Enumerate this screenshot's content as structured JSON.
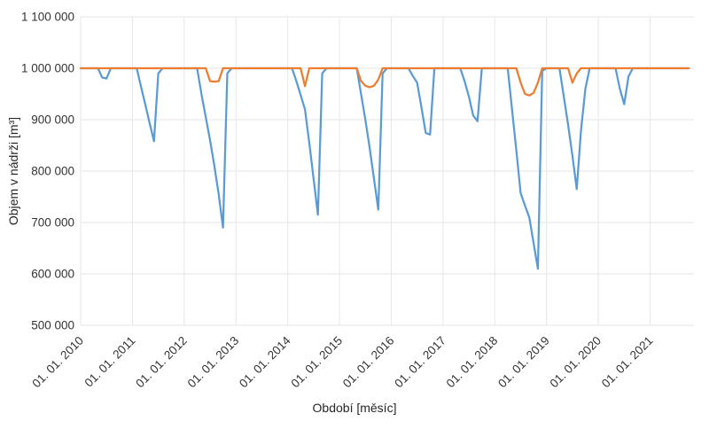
{
  "chart_data": {
    "type": "line",
    "title": "",
    "grid": true,
    "legend": "none",
    "background": "#ffffff",
    "gridline_color": "#e6e6e6",
    "tick_text_color": "#333333",
    "y_axis": {
      "title": "Objem v nádrži [m³]",
      "range": [
        500000,
        1100000
      ],
      "ticks": [
        {
          "label": "1 100 000",
          "value": 1100000
        },
        {
          "label": "1 000 000",
          "value": 1000000
        },
        {
          "label": "900 000",
          "value": 900000
        },
        {
          "label": "800 000",
          "value": 800000
        },
        {
          "label": "700 000",
          "value": 700000
        },
        {
          "label": "600 000",
          "value": 600000
        },
        {
          "label": "500 000",
          "value": 500000
        }
      ]
    },
    "x_axis": {
      "title": "Období [měsíc]",
      "unit": "month",
      "start_month": "2010-01",
      "end_month": "2021-10",
      "tick_labels": [
        "01. 01. 2010",
        "01. 01. 2011",
        "01. 01. 2012",
        "01. 01. 2013",
        "01. 01. 2014",
        "01. 01. 2015",
        "01. 01. 2016",
        "01. 01. 2017",
        "01. 01. 2018",
        "01. 01. 2019",
        "01. 01. 2020",
        "01. 01. 2021"
      ]
    },
    "series": [
      {
        "name": "series-blue",
        "color": "#5B9BD5",
        "unit": "m³",
        "monthly_values": [
          1000000,
          1000000,
          1000000,
          1000000,
          1000000,
          982000,
          980000,
          1000000,
          1000000,
          1000000,
          1000000,
          1000000,
          1000000,
          1000000,
          964000,
          929000,
          893000,
          858000,
          990000,
          1000000,
          1000000,
          1000000,
          1000000,
          1000000,
          1000000,
          1000000,
          1000000,
          1000000,
          950000,
          905000,
          860000,
          810000,
          755000,
          690000,
          990000,
          1000000,
          1000000,
          1000000,
          1000000,
          1000000,
          1000000,
          1000000,
          1000000,
          1000000,
          1000000,
          1000000,
          1000000,
          1000000,
          1000000,
          1000000,
          975000,
          948000,
          920000,
          855000,
          785000,
          715000,
          990000,
          1000000,
          1000000,
          1000000,
          1000000,
          1000000,
          1000000,
          1000000,
          1000000,
          950000,
          900000,
          845000,
          785000,
          725000,
          990000,
          1000000,
          1000000,
          1000000,
          1000000,
          1000000,
          1000000,
          985000,
          972000,
          924000,
          874000,
          871000,
          1000000,
          1000000,
          1000000,
          1000000,
          1000000,
          1000000,
          1000000,
          975000,
          945000,
          908000,
          897000,
          1000000,
          1000000,
          1000000,
          1000000,
          1000000,
          1000000,
          1000000,
          920000,
          840000,
          757000,
          733000,
          710000,
          660000,
          610000,
          995000,
          1000000,
          1000000,
          1000000,
          1000000,
          945000,
          890000,
          830000,
          765000,
          880000,
          960000,
          1000000,
          1000000,
          1000000,
          1000000,
          1000000,
          1000000,
          1000000,
          960000,
          930000,
          984000,
          1000000,
          1000000,
          1000000,
          1000000,
          1000000,
          1000000,
          1000000,
          1000000,
          1000000,
          1000000,
          1000000,
          1000000,
          1000000,
          1000000
        ]
      },
      {
        "name": "series-orange",
        "color": "#ED7D31",
        "unit": "m³",
        "monthly_values": [
          1000000,
          1000000,
          1000000,
          1000000,
          1000000,
          1000000,
          1000000,
          1000000,
          1000000,
          1000000,
          1000000,
          1000000,
          1000000,
          1000000,
          1000000,
          1000000,
          1000000,
          1000000,
          1000000,
          1000000,
          1000000,
          1000000,
          1000000,
          1000000,
          1000000,
          1000000,
          1000000,
          1000000,
          1000000,
          1000000,
          975000,
          974000,
          975000,
          1000000,
          1000000,
          1000000,
          1000000,
          1000000,
          1000000,
          1000000,
          1000000,
          1000000,
          1000000,
          1000000,
          1000000,
          1000000,
          1000000,
          1000000,
          1000000,
          1000000,
          1000000,
          1000000,
          965000,
          1000000,
          1000000,
          1000000,
          1000000,
          1000000,
          1000000,
          1000000,
          1000000,
          1000000,
          1000000,
          1000000,
          1000000,
          975000,
          966000,
          963000,
          966000,
          978000,
          1000000,
          1000000,
          1000000,
          1000000,
          1000000,
          1000000,
          1000000,
          1000000,
          1000000,
          1000000,
          1000000,
          1000000,
          1000000,
          1000000,
          1000000,
          1000000,
          1000000,
          1000000,
          1000000,
          1000000,
          1000000,
          1000000,
          1000000,
          1000000,
          1000000,
          1000000,
          1000000,
          1000000,
          1000000,
          1000000,
          1000000,
          1000000,
          972000,
          950000,
          947000,
          952000,
          972000,
          1000000,
          1000000,
          1000000,
          1000000,
          1000000,
          1000000,
          1000000,
          972000,
          990000,
          1000000,
          1000000,
          1000000,
          1000000,
          1000000,
          1000000,
          1000000,
          1000000,
          1000000,
          1000000,
          1000000,
          1000000,
          1000000,
          1000000,
          1000000,
          1000000,
          1000000,
          1000000,
          1000000,
          1000000,
          1000000,
          1000000,
          1000000,
          1000000,
          1000000,
          1000000
        ]
      }
    ]
  }
}
